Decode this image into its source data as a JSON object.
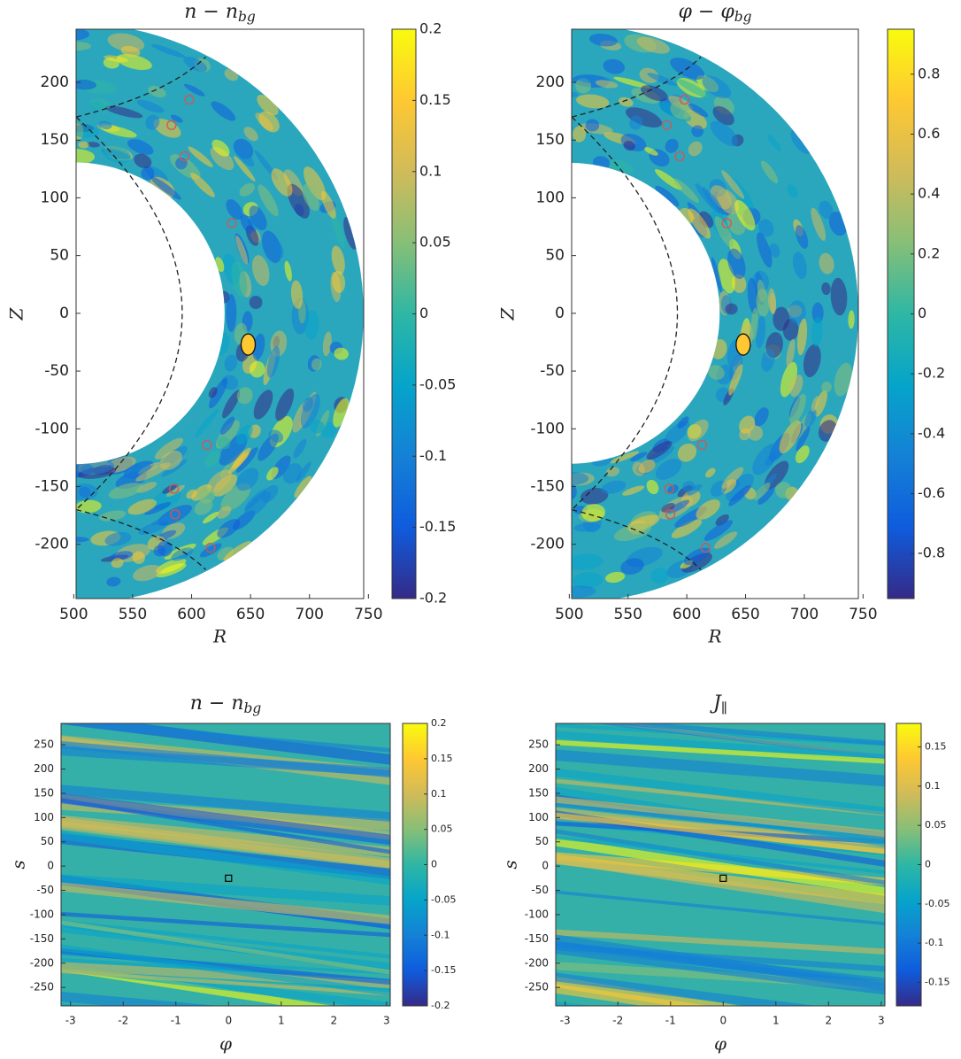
{
  "chart_data": [
    {
      "type": "heatmap",
      "title": "n − n",
      "title_subscript": "bg",
      "xlabel": "R",
      "ylabel": "Z",
      "xlim": [
        502,
        746
      ],
      "xticks": [
        500,
        550,
        600,
        650,
        700,
        750
      ],
      "ylim": [
        -247,
        246
      ],
      "yticks": [
        -200,
        -150,
        -100,
        -50,
        0,
        50,
        100,
        150,
        200
      ],
      "colorbar_lim": [
        -0.2,
        0.2
      ],
      "colorbar_ticks": [
        -0.2,
        -0.15,
        -0.1,
        -0.05,
        0,
        0.05,
        0.1,
        0.15,
        0.2
      ],
      "points": {
        "color": "#d9534f",
        "x": [
          598,
          583,
          594,
          634,
          613,
          585,
          586,
          616
        ],
        "y": [
          185,
          163,
          136,
          78,
          -114,
          -152,
          -174,
          -203
        ]
      }
    },
    {
      "type": "heatmap",
      "title": "φ − φ",
      "title_subscript": "bg",
      "xlabel": "R",
      "ylabel": "Z",
      "xlim": [
        502,
        746
      ],
      "xticks": [
        500,
        550,
        600,
        650,
        700,
        750
      ],
      "ylim": [
        -247,
        246
      ],
      "yticks": [
        -200,
        -150,
        -100,
        -50,
        0,
        50,
        100,
        150,
        200
      ],
      "colorbar_lim": [
        -0.95,
        0.95
      ],
      "colorbar_ticks": [
        -0.8,
        -0.6,
        -0.4,
        -0.2,
        0,
        0.2,
        0.4,
        0.6,
        0.8
      ],
      "points": {
        "color": "#d9534f",
        "x": [
          598,
          583,
          594,
          634,
          613,
          585,
          586,
          616
        ],
        "y": [
          185,
          163,
          136,
          78,
          -114,
          -152,
          -174,
          -203
        ]
      }
    },
    {
      "type": "heatmap",
      "title": "n − n",
      "title_subscript": "bg",
      "xlabel": "φ",
      "ylabel": "s",
      "xlim": [
        -3.18,
        3.07
      ],
      "xticks": [
        -3,
        -2,
        -1,
        0,
        1,
        2,
        3
      ],
      "ylim": [
        -288,
        294
      ],
      "yticks": [
        -250,
        -200,
        -150,
        -100,
        -50,
        0,
        50,
        100,
        150,
        200,
        250
      ],
      "colorbar_lim": [
        -0.2,
        0.2
      ],
      "colorbar_ticks": [
        -0.2,
        -0.15,
        -0.1,
        -0.05,
        0,
        0.05,
        0.1,
        0.15,
        0.2
      ],
      "points": {
        "color": "#000000",
        "x": [
          0
        ],
        "y": [
          -25
        ]
      }
    },
    {
      "type": "heatmap",
      "title": "J",
      "title_subscript": "∥",
      "xlabel": "φ",
      "ylabel": "s",
      "xlim": [
        -3.18,
        3.07
      ],
      "xticks": [
        -3,
        -2,
        -1,
        0,
        1,
        2,
        3
      ],
      "ylim": [
        -288,
        294
      ],
      "yticks": [
        -250,
        -200,
        -150,
        -100,
        -50,
        0,
        50,
        100,
        150,
        200,
        250
      ],
      "colorbar_lim": [
        -0.18,
        0.18
      ],
      "colorbar_ticks": [
        -0.15,
        -0.1,
        -0.05,
        0,
        0.05,
        0.1,
        0.15
      ],
      "points": {
        "color": "#000000",
        "x": [
          0
        ],
        "y": [
          -25
        ]
      }
    }
  ]
}
